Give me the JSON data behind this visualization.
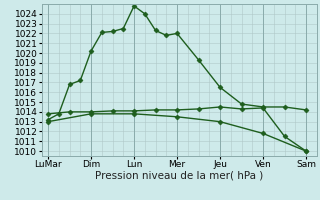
{
  "x_labels": [
    "LuMar",
    "Dim",
    "Lun",
    "Mer",
    "Jeu",
    "Ven",
    "Sam"
  ],
  "x_tick_pos": [
    0,
    2,
    4,
    6,
    8,
    10,
    12
  ],
  "line1": {
    "x": [
      0,
      0.5,
      1,
      1.5,
      2,
      2.5,
      3,
      3.5,
      4,
      4.5,
      5,
      5.5,
      6,
      7,
      8,
      9,
      10,
      11,
      12
    ],
    "y": [
      1013.2,
      1013.8,
      1016.8,
      1017.2,
      1020.2,
      1022.1,
      1022.2,
      1022.5,
      1024.8,
      1024.0,
      1022.3,
      1021.8,
      1022.0,
      1019.3,
      1016.5,
      1014.8,
      1014.5,
      1014.5,
      1014.2
    ],
    "color": "#1e5e1e",
    "marker": "D",
    "markersize": 2.5,
    "linewidth": 1.0
  },
  "line2": {
    "x": [
      0,
      1,
      2,
      3,
      4,
      5,
      6,
      7,
      8,
      9,
      10,
      11,
      12
    ],
    "y": [
      1013.8,
      1014.0,
      1014.0,
      1014.1,
      1014.1,
      1014.2,
      1014.2,
      1014.3,
      1014.5,
      1014.3,
      1014.4,
      1011.5,
      1010.0
    ],
    "color": "#1e5e1e",
    "marker": "D",
    "markersize": 2.5,
    "linewidth": 1.0
  },
  "line3": {
    "x": [
      0,
      2,
      4,
      6,
      8,
      10,
      12
    ],
    "y": [
      1013.0,
      1013.8,
      1013.8,
      1013.5,
      1013.0,
      1011.8,
      1010.0
    ],
    "color": "#1e5e1e",
    "marker": "D",
    "markersize": 2.5,
    "linewidth": 1.0
  },
  "ylim": [
    1009.5,
    1025.0
  ],
  "yticks": [
    1010,
    1011,
    1012,
    1013,
    1014,
    1015,
    1016,
    1017,
    1018,
    1019,
    1020,
    1021,
    1022,
    1023,
    1024
  ],
  "xlabel": "Pression niveau de la mer( hPa )",
  "xlabel_fontsize": 7.5,
  "tick_fontsize": 6.5,
  "bg_color": "#ceeaea",
  "grid_color": "#b0c8c8",
  "line_color": "#1e5e1e"
}
